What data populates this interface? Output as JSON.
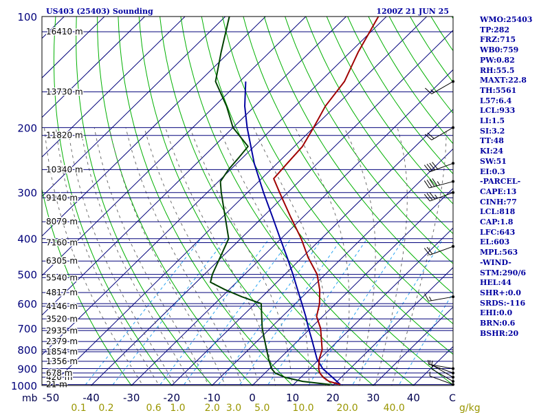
{
  "chart_data": {
    "type": "skew-t",
    "title_left": "US403 (25403) Sounding",
    "title_right": "1200Z 21 JUN 25",
    "pressure_axis_label": "mb",
    "temp_axis_unit": "C",
    "mixing_unit": "g/kg",
    "pressure_levels": [
      1000,
      900,
      800,
      700,
      600,
      500,
      400,
      300,
      200,
      100
    ],
    "pressure_tick_labels": [
      "1000",
      "900",
      "800",
      "700",
      "600",
      "500",
      "400",
      "300",
      "200",
      "100"
    ],
    "heights": [
      {
        "p": 994,
        "label": "21 m"
      },
      {
        "p": 950,
        "label": "420 m"
      },
      {
        "p": 925,
        "label": "678 m"
      },
      {
        "p": 860,
        "label": "1356 m"
      },
      {
        "p": 810,
        "label": "1854 m"
      },
      {
        "p": 760,
        "label": "2379 m"
      },
      {
        "p": 710,
        "label": "2935 m"
      },
      {
        "p": 660,
        "label": "3520 m"
      },
      {
        "p": 610,
        "label": "4146 m"
      },
      {
        "p": 560,
        "label": "4817 m"
      },
      {
        "p": 510,
        "label": "5540 m"
      },
      {
        "p": 460,
        "label": "6305 m"
      },
      {
        "p": 410,
        "label": "7160 m"
      },
      {
        "p": 360,
        "label": "8079 m"
      },
      {
        "p": 310,
        "label": "9140 m"
      },
      {
        "p": 260,
        "label": "10340 m"
      },
      {
        "p": 210,
        "label": "11820 m"
      },
      {
        "p": 160,
        "label": "13730 m"
      },
      {
        "p": 110,
        "label": "16410 m"
      }
    ],
    "temp_ticks": [
      -50,
      -40,
      -30,
      -20,
      -10,
      0,
      10,
      20,
      30,
      40
    ],
    "temp_tick_labels": [
      "-50",
      "-40",
      "-30",
      "-20",
      "-10",
      "0",
      "10",
      "20",
      "30",
      "40"
    ],
    "mixing_ratios": [
      0.1,
      0.2,
      0.6,
      1.0,
      2.0,
      3.0,
      5.0,
      10.0,
      20.0,
      40.0
    ],
    "mixing_labels": [
      "0.1",
      "0.2",
      "0.6",
      "1.0",
      "2.0",
      "3.0",
      "5.0",
      "10.0",
      "20.0",
      "40.0"
    ],
    "temperature": [
      {
        "p": 994,
        "t": 21.6
      },
      {
        "p": 975,
        "t": 18.0
      },
      {
        "p": 950,
        "t": 15.5
      },
      {
        "p": 925,
        "t": 13.6
      },
      {
        "p": 900,
        "t": 12.2
      },
      {
        "p": 850,
        "t": 10.0
      },
      {
        "p": 800,
        "t": 8.3
      },
      {
        "p": 750,
        "t": 5.5
      },
      {
        "p": 700,
        "t": 2.5
      },
      {
        "p": 650,
        "t": -1.5
      },
      {
        "p": 600,
        "t": -4.0
      },
      {
        "p": 550,
        "t": -7.5
      },
      {
        "p": 500,
        "t": -12.0
      },
      {
        "p": 450,
        "t": -18.5
      },
      {
        "p": 400,
        "t": -25.0
      },
      {
        "p": 350,
        "t": -33.0
      },
      {
        "p": 300,
        "t": -42.0
      },
      {
        "p": 275,
        "t": -47.0
      },
      {
        "p": 250,
        "t": -47.5
      },
      {
        "p": 225,
        "t": -48.0
      },
      {
        "p": 200,
        "t": -50.0
      },
      {
        "p": 175,
        "t": -52.5
      },
      {
        "p": 150,
        "t": -54.0
      },
      {
        "p": 125,
        "t": -58.0
      },
      {
        "p": 100,
        "t": -62.0
      }
    ],
    "dewpoint": [
      {
        "p": 994,
        "t": 19.0
      },
      {
        "p": 975,
        "t": 11.5
      },
      {
        "p": 950,
        "t": 6.0
      },
      {
        "p": 925,
        "t": 2.5
      },
      {
        "p": 900,
        "t": 0.5
      },
      {
        "p": 850,
        "t": -2.5
      },
      {
        "p": 800,
        "t": -5.5
      },
      {
        "p": 700,
        "t": -12.0
      },
      {
        "p": 600,
        "t": -18.5
      },
      {
        "p": 575,
        "t": -25.0
      },
      {
        "p": 550,
        "t": -31.0
      },
      {
        "p": 525,
        "t": -36.5
      },
      {
        "p": 500,
        "t": -38.0
      },
      {
        "p": 400,
        "t": -43.0
      },
      {
        "p": 300,
        "t": -56.5
      },
      {
        "p": 280,
        "t": -59.5
      },
      {
        "p": 260,
        "t": -60.5
      },
      {
        "p": 240,
        "t": -61.0
      },
      {
        "p": 225,
        "t": -61.5
      },
      {
        "p": 200,
        "t": -70.0
      },
      {
        "p": 175,
        "t": -77.0
      },
      {
        "p": 150,
        "t": -86.0
      },
      {
        "p": 125,
        "t": -92.0
      },
      {
        "p": 100,
        "t": -99.0
      }
    ],
    "parcel": [
      {
        "p": 994,
        "t": 21.6
      },
      {
        "p": 950,
        "t": 17.8
      },
      {
        "p": 900,
        "t": 13.2
      },
      {
        "p": 850,
        "t": 9.5
      },
      {
        "p": 800,
        "t": 6.4
      },
      {
        "p": 750,
        "t": 3.1
      },
      {
        "p": 700,
        "t": -0.5
      },
      {
        "p": 650,
        "t": -4.2
      },
      {
        "p": 600,
        "t": -8.4
      },
      {
        "p": 550,
        "t": -13.0
      },
      {
        "p": 500,
        "t": -18.0
      },
      {
        "p": 450,
        "t": -23.7
      },
      {
        "p": 400,
        "t": -30.2
      },
      {
        "p": 350,
        "t": -37.5
      },
      {
        "p": 300,
        "t": -46.0
      },
      {
        "p": 250,
        "t": -55.7
      },
      {
        "p": 200,
        "t": -66.5
      },
      {
        "p": 175,
        "t": -72.5
      },
      {
        "p": 150,
        "t": -78.5
      }
    ],
    "winds": [
      {
        "p": 994,
        "dir": 290,
        "spd": 5
      },
      {
        "p": 975,
        "dir": 300,
        "spd": 5
      },
      {
        "p": 950,
        "dir": 300,
        "spd": 5
      },
      {
        "p": 925,
        "dir": 290,
        "spd": 5
      },
      {
        "p": 900,
        "dir": 280,
        "spd": 5
      },
      {
        "p": 575,
        "dir": 260,
        "spd": 15
      },
      {
        "p": 420,
        "dir": 250,
        "spd": 20
      },
      {
        "p": 300,
        "dir": 250,
        "spd": 35
      },
      {
        "p": 280,
        "dir": 255,
        "spd": 45
      },
      {
        "p": 250,
        "dir": 250,
        "spd": 40
      },
      {
        "p": 200,
        "dir": 240,
        "spd": 20
      },
      {
        "p": 150,
        "dir": 240,
        "spd": 15
      }
    ],
    "grid": true
  },
  "indices": [
    "WMO:25403",
    "TP:282",
    "FRZ:715",
    "WB0:759",
    "PW:0.82",
    "RH:55.5",
    "MAXT:22.8",
    "TH:5561",
    "L57:6.4",
    "LCL:933",
    "LI:1.5",
    "SI:3.2",
    "TT:48",
    "KI:24",
    "SW:51",
    "EI:0.3",
    "-PARCEL-",
    "CAPE:13",
    "CINH:77",
    "LCL:818",
    "CAP:1.8",
    "LFC:643",
    "EL:603",
    "MPL:563",
    "-WIND-",
    "STM:290/6",
    "HEL:44",
    "SHR+:0.0",
    "SRDS:-116",
    "EHI:0.0",
    "BRN:0.6",
    "BSHR:20"
  ],
  "colors": {
    "frame": "#000000",
    "isobar": "#00007a",
    "isotherm": "#00007a",
    "dry_adiabat": "#00b000",
    "moist_adiabat": "#6e6e6e",
    "mixing_ratio": "#26a3f2",
    "temperature": "#a00000",
    "dewpoint": "#004000",
    "parcel": "#0000a0",
    "bottom_temp_labels": "#000050",
    "mixing_labels": "#999600",
    "indices_text": "#0000a0",
    "title_text": "#0000a0",
    "height_labels": "#000000"
  }
}
